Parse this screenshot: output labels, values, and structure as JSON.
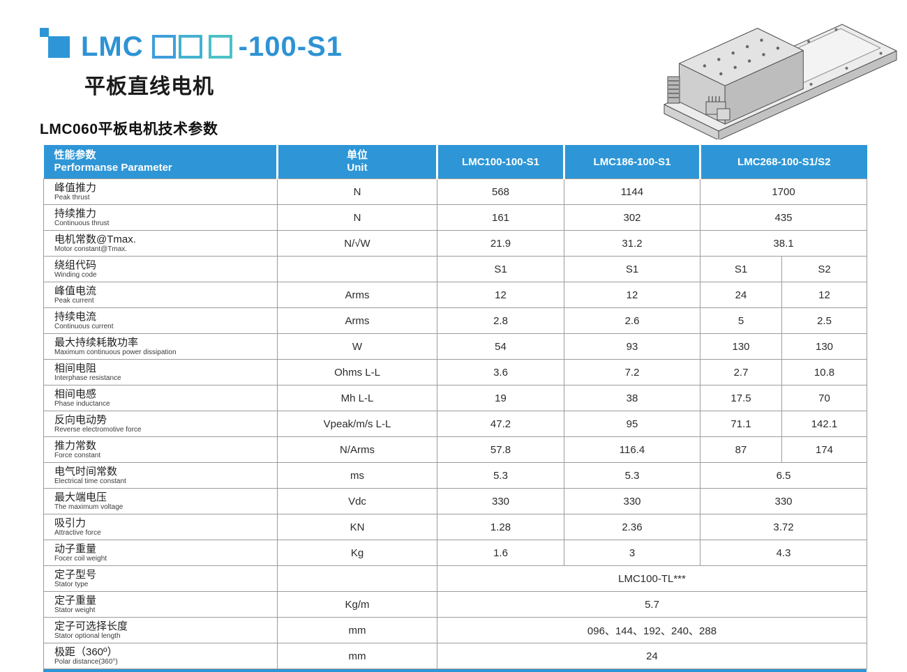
{
  "header": {
    "title_prefix": "LMC",
    "title_placeholder_squares": 3,
    "title_suffix": "-100-S1",
    "subtitle": "平板直线电机",
    "section_title": "LMC060平板电机技术参数",
    "illustration": "flat-linear-motor-isometric-drawing"
  },
  "colors": {
    "accent_blue": "#2e96d6",
    "title_blue": "#2e93d4",
    "square_colors": [
      "#3f9edb",
      "#45b2cf",
      "#4cc0c6"
    ],
    "grid_line": "#9c9c9c"
  },
  "table": {
    "header": {
      "param_cn": "性能参数",
      "param_en": "Performanse Parameter",
      "unit_cn": "单位",
      "unit_en": "Unit",
      "models": [
        "LMC100-100-S1",
        "LMC186-100-S1",
        "LMC268-100-S1/S2"
      ]
    },
    "rows": [
      {
        "cn": "峰值推力",
        "en": "Peak thrust",
        "unit": "N",
        "cells": [
          {
            "v": "568",
            "span": 1
          },
          {
            "v": "1144",
            "span": 1
          },
          {
            "v": "1700",
            "span": 2
          }
        ]
      },
      {
        "cn": "持续推力",
        "en": "Continuous thrust",
        "unit": "N",
        "cells": [
          {
            "v": "161",
            "span": 1
          },
          {
            "v": "302",
            "span": 1
          },
          {
            "v": "435",
            "span": 2
          }
        ]
      },
      {
        "cn": "电机常数@Tmax.",
        "en": "Motor constant@Tmax.",
        "unit": "N/√W",
        "cells": [
          {
            "v": "21.9",
            "span": 1
          },
          {
            "v": "31.2",
            "span": 1
          },
          {
            "v": "38.1",
            "span": 2
          }
        ]
      },
      {
        "cn": "绕组代码",
        "en": "Winding code",
        "unit": "",
        "cells": [
          {
            "v": "S1",
            "span": 1
          },
          {
            "v": "S1",
            "span": 1
          },
          {
            "v": "S1",
            "span": 1
          },
          {
            "v": "S2",
            "span": 1
          }
        ]
      },
      {
        "cn": "峰值电流",
        "en": "Peak current",
        "unit": "Arms",
        "cells": [
          {
            "v": "12",
            "span": 1
          },
          {
            "v": "12",
            "span": 1
          },
          {
            "v": "24",
            "span": 1
          },
          {
            "v": "12",
            "span": 1
          }
        ]
      },
      {
        "cn": "持续电流",
        "en": "Continuous current",
        "unit": "Arms",
        "cells": [
          {
            "v": "2.8",
            "span": 1
          },
          {
            "v": "2.6",
            "span": 1
          },
          {
            "v": "5",
            "span": 1
          },
          {
            "v": "2.5",
            "span": 1
          }
        ]
      },
      {
        "cn": "最大持续耗散功率",
        "en": "Maximum continuous power dissipation",
        "unit": "W",
        "cells": [
          {
            "v": "54",
            "span": 1
          },
          {
            "v": "93",
            "span": 1
          },
          {
            "v": "130",
            "span": 1
          },
          {
            "v": "130",
            "span": 1
          }
        ]
      },
      {
        "cn": "相间电阻",
        "en": "Interphase resistance",
        "unit": "Ohms L-L",
        "cells": [
          {
            "v": "3.6",
            "span": 1
          },
          {
            "v": "7.2",
            "span": 1
          },
          {
            "v": "2.7",
            "span": 1
          },
          {
            "v": "10.8",
            "span": 1
          }
        ]
      },
      {
        "cn": "相间电感",
        "en": "Phase inductance",
        "unit": "Mh L-L",
        "cells": [
          {
            "v": "19",
            "span": 1
          },
          {
            "v": "38",
            "span": 1
          },
          {
            "v": "17.5",
            "span": 1
          },
          {
            "v": "70",
            "span": 1
          }
        ]
      },
      {
        "cn": "反向电动势",
        "en": "Reverse electromotive force",
        "unit": "Vpeak/m/s L-L",
        "cells": [
          {
            "v": "47.2",
            "span": 1
          },
          {
            "v": "95",
            "span": 1
          },
          {
            "v": "71.1",
            "span": 1
          },
          {
            "v": "142.1",
            "span": 1
          }
        ]
      },
      {
        "cn": "推力常数",
        "en": "Force constant",
        "unit": "N/Arms",
        "cells": [
          {
            "v": "57.8",
            "span": 1
          },
          {
            "v": "116.4",
            "span": 1
          },
          {
            "v": "87",
            "span": 1
          },
          {
            "v": "174",
            "span": 1
          }
        ]
      },
      {
        "cn": "电气时间常数",
        "en": "Electrical time constant",
        "unit": "ms",
        "cells": [
          {
            "v": "5.3",
            "span": 1
          },
          {
            "v": "5.3",
            "span": 1
          },
          {
            "v": "6.5",
            "span": 2
          }
        ]
      },
      {
        "cn": "最大端电压",
        "en": "The maximum voltage",
        "unit": "Vdc",
        "cells": [
          {
            "v": "330",
            "span": 1
          },
          {
            "v": "330",
            "span": 1
          },
          {
            "v": "330",
            "span": 2
          }
        ]
      },
      {
        "cn": "吸引力",
        "en": "Attractive force",
        "unit": "KN",
        "cells": [
          {
            "v": "1.28",
            "span": 1
          },
          {
            "v": "2.36",
            "span": 1
          },
          {
            "v": "3.72",
            "span": 2
          }
        ]
      },
      {
        "cn": "动子重量",
        "en": "Focer coil weight",
        "unit": "Kg",
        "cells": [
          {
            "v": "1.6",
            "span": 1
          },
          {
            "v": "3",
            "span": 1
          },
          {
            "v": "4.3",
            "span": 2
          }
        ]
      },
      {
        "cn": "定子型号",
        "en": "Stator type",
        "unit": "",
        "cells": [
          {
            "v": "LMC100-TL***",
            "span": 4
          }
        ]
      },
      {
        "cn": "定子重量",
        "en": "Stator weight",
        "unit": "Kg/m",
        "cells": [
          {
            "v": "5.7",
            "span": 4
          }
        ]
      },
      {
        "cn": "定子可选择长度",
        "en": "Stator optional length",
        "unit": "mm",
        "cells": [
          {
            "v": "096、144、192、240、288",
            "span": 4
          }
        ]
      },
      {
        "cn": "极距（360º）",
        "en": "Polar distance(360°)",
        "unit": "mm",
        "cells": [
          {
            "v": "24",
            "span": 4
          }
        ]
      }
    ]
  }
}
